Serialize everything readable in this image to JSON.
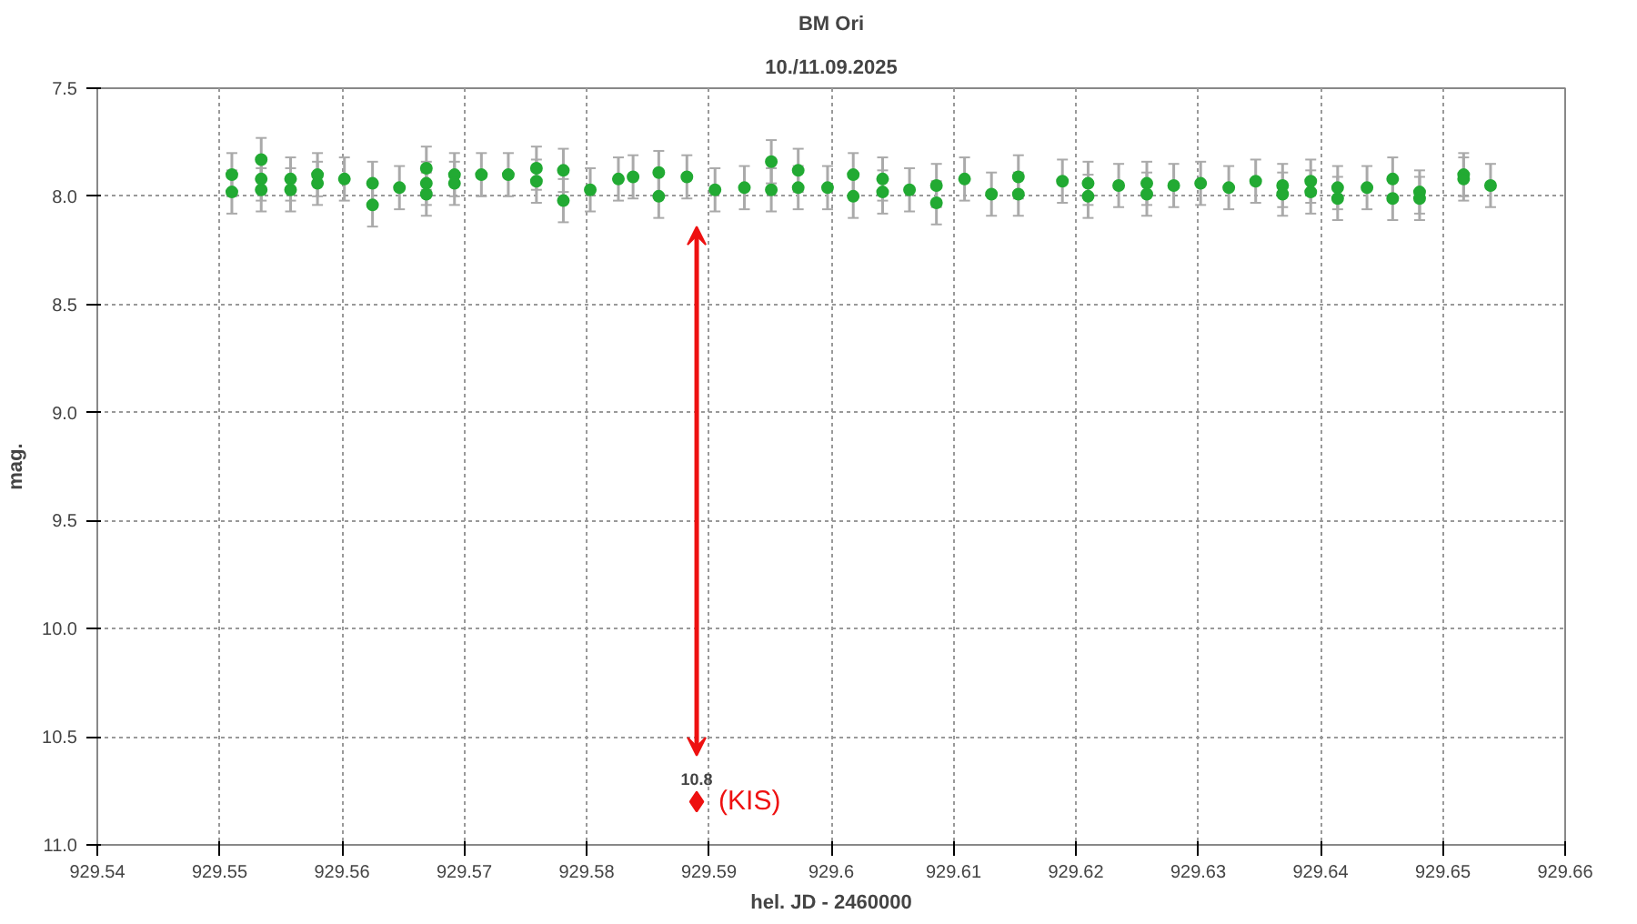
{
  "chart_data": {
    "type": "scatter",
    "title": "BM Ori",
    "subtitle": "10./11.09.2025",
    "xlabel": "hel. JD - 2460000",
    "ylabel": "mag.",
    "xlim": [
      929.54,
      929.66
    ],
    "xticks": [
      929.54,
      929.55,
      929.56,
      929.57,
      929.58,
      929.59,
      929.6,
      929.61,
      929.62,
      929.63,
      929.64,
      929.65,
      929.66
    ],
    "ylim": [
      11.0,
      7.5
    ],
    "yticks": [
      7.5,
      {
        "value": 8,
        "label": "8.0"
      },
      8.5,
      {
        "value": 9,
        "label": "9.0"
      },
      9.5,
      {
        "value": 10,
        "label": "10.0"
      },
      10.5,
      {
        "value": 11,
        "label": "11.0"
      }
    ],
    "grid": true,
    "series": [
      {
        "color": "#22aa33",
        "marker": "circle",
        "x": [
          929.551,
          929.551,
          929.5534,
          929.5534,
          929.5534,
          929.5558,
          929.5558,
          929.558,
          929.558,
          929.5602,
          929.5625,
          929.5625,
          929.5647,
          929.5669,
          929.5669,
          929.5669,
          929.5692,
          929.5692,
          929.5714,
          929.5736,
          929.5759,
          929.5759,
          929.5781,
          929.5781,
          929.5803,
          929.5826,
          929.5838,
          929.5859,
          929.5859,
          929.5882,
          929.5905,
          929.5929,
          929.5951,
          929.5951,
          929.5973,
          929.5973,
          929.5997,
          929.6018,
          929.6018,
          929.6042,
          929.6042,
          929.6064,
          929.6086,
          929.6086,
          929.6109,
          929.6131,
          929.6153,
          929.6153,
          929.6189,
          929.621,
          929.621,
          929.6235,
          929.6258,
          929.6258,
          929.628,
          929.6302,
          929.6325,
          929.6347,
          929.6369,
          929.6369,
          929.6392,
          929.6392,
          929.6414,
          929.6414,
          929.6438,
          929.6459,
          929.6459,
          929.6481,
          929.6481,
          929.6517,
          929.6517,
          929.6539
        ],
        "values": [
          7.9,
          7.98,
          7.83,
          7.92,
          7.97,
          7.92,
          7.97,
          7.9,
          7.94,
          7.92,
          7.94,
          8.04,
          7.96,
          7.87,
          7.94,
          7.99,
          7.9,
          7.94,
          7.9,
          7.9,
          7.87,
          7.93,
          7.88,
          8.02,
          7.97,
          7.92,
          7.91,
          7.89,
          8.0,
          7.91,
          7.97,
          7.96,
          7.84,
          7.97,
          7.88,
          7.96,
          7.96,
          7.9,
          8.0,
          7.92,
          7.98,
          7.97,
          7.95,
          8.03,
          7.92,
          7.99,
          7.91,
          7.99,
          7.93,
          7.94,
          8.0,
          7.95,
          7.94,
          7.99,
          7.95,
          7.94,
          7.96,
          7.93,
          7.95,
          7.99,
          7.93,
          7.98,
          7.96,
          8.01,
          7.96,
          7.92,
          8.01,
          7.98,
          8.01,
          7.9,
          7.92,
          7.95
        ],
        "errors": [
          0.1,
          0.1,
          0.1,
          0.1,
          0.1,
          0.1,
          0.1,
          0.1,
          0.1,
          0.1,
          0.1,
          0.1,
          0.1,
          0.1,
          0.1,
          0.1,
          0.1,
          0.1,
          0.1,
          0.1,
          0.1,
          0.1,
          0.1,
          0.1,
          0.1,
          0.1,
          0.1,
          0.1,
          0.1,
          0.1,
          0.1,
          0.1,
          0.1,
          0.1,
          0.1,
          0.1,
          0.1,
          0.1,
          0.1,
          0.1,
          0.1,
          0.1,
          0.1,
          0.1,
          0.1,
          0.1,
          0.1,
          0.1,
          0.1,
          0.1,
          0.1,
          0.1,
          0.1,
          0.1,
          0.1,
          0.1,
          0.1,
          0.1,
          0.1,
          0.1,
          0.1,
          0.1,
          0.1,
          0.1,
          0.1,
          0.1,
          0.1,
          0.1,
          0.1,
          0.1,
          0.1,
          0.1
        ]
      },
      {
        "color": "#ee1111",
        "marker": "diamond",
        "x": [
          929.589
        ],
        "values": [
          10.8
        ],
        "value_labels": [
          "10.8"
        ]
      }
    ],
    "annotations": [
      {
        "text": "(KIS)",
        "x": 929.589,
        "y": 10.8
      }
    ]
  }
}
